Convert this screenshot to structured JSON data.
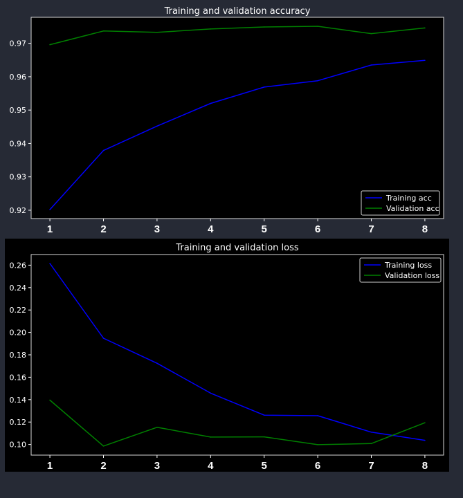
{
  "chart_data": [
    {
      "type": "line",
      "title": "Training and validation accuracy",
      "x": [
        1,
        2,
        3,
        4,
        5,
        6,
        7,
        8
      ],
      "series": [
        {
          "name": "Training acc",
          "color": "#0000ff",
          "values": [
            0.9202,
            0.9379,
            0.9452,
            0.952,
            0.9569,
            0.9588,
            0.9635,
            0.9649
          ]
        },
        {
          "name": "Validation acc",
          "color": "#008000",
          "values": [
            0.9696,
            0.9737,
            0.9733,
            0.9743,
            0.9749,
            0.9751,
            0.9729,
            0.9746
          ]
        }
      ],
      "xlim": [
        0.65,
        8.35
      ],
      "ylim": [
        0.9175,
        0.9778
      ],
      "yticks": [
        0.92,
        0.93,
        0.94,
        0.95,
        0.96,
        0.97
      ],
      "ytick_labels": [
        "0.92",
        "0.93",
        "0.94",
        "0.95",
        "0.96",
        "0.97"
      ],
      "xticks": [
        1,
        2,
        3,
        4,
        5,
        6,
        7,
        8
      ],
      "xtick_labels": [
        "1",
        "2",
        "3",
        "4",
        "5",
        "6",
        "7",
        "8"
      ],
      "xlabel": "",
      "ylabel": "",
      "legend": "lower-right",
      "grid": false
    },
    {
      "type": "line",
      "title": "Training and validation loss",
      "x": [
        1,
        2,
        3,
        4,
        5,
        6,
        7,
        8
      ],
      "series": [
        {
          "name": "Training loss",
          "color": "#0000ff",
          "values": [
            0.2615,
            0.1948,
            0.1725,
            0.1458,
            0.1262,
            0.1257,
            0.111,
            0.1037
          ]
        },
        {
          "name": "Validation loss",
          "color": "#008000",
          "values": [
            0.1396,
            0.0986,
            0.1153,
            0.1066,
            0.1068,
            0.0998,
            0.1008,
            0.1194
          ]
        }
      ],
      "xlim": [
        0.65,
        8.35
      ],
      "ylim": [
        0.0905,
        0.2695
      ],
      "yticks": [
        0.1,
        0.12,
        0.14,
        0.16,
        0.18,
        0.2,
        0.22,
        0.24,
        0.26
      ],
      "ytick_labels": [
        "0.10",
        "0.12",
        "0.14",
        "0.16",
        "0.18",
        "0.20",
        "0.22",
        "0.24",
        "0.26"
      ],
      "xticks": [
        1,
        2,
        3,
        4,
        5,
        6,
        7,
        8
      ],
      "xtick_labels": [
        "1",
        "2",
        "3",
        "4",
        "5",
        "6",
        "7",
        "8"
      ],
      "xlabel": "",
      "ylabel": "",
      "legend": "upper-right",
      "grid": false
    }
  ]
}
